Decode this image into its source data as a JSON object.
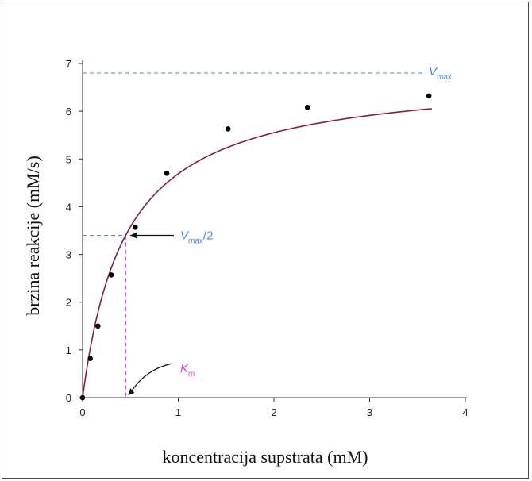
{
  "chart_data": {
    "type": "scatter",
    "xlabel": "koncentracija supstrata (mM)",
    "ylabel": "brzina reakcije (mM/s)",
    "xlim": [
      0,
      4
    ],
    "ylim": [
      0,
      7
    ],
    "x_ticks": [
      "0",
      "1",
      "2",
      "3",
      "4"
    ],
    "y_ticks": [
      "0",
      "1",
      "2",
      "3",
      "4",
      "5",
      "6",
      "7"
    ],
    "grid": false,
    "points": [
      {
        "x": 0.0,
        "y": 0.0
      },
      {
        "x": 0.08,
        "y": 0.82
      },
      {
        "x": 0.16,
        "y": 1.5
      },
      {
        "x": 0.3,
        "y": 2.57
      },
      {
        "x": 0.55,
        "y": 3.57
      },
      {
        "x": 0.88,
        "y": 4.7
      },
      {
        "x": 1.52,
        "y": 5.63
      },
      {
        "x": 2.35,
        "y": 6.08
      },
      {
        "x": 3.62,
        "y": 6.32
      }
    ],
    "fit": {
      "model": "Michaelis-Menten",
      "vmax": 6.8,
      "km": 0.45
    },
    "colors": {
      "curve": "#8b1a4a",
      "vmax_line": "#4a86e8",
      "km_line": "#e040e0",
      "points": "#000000"
    },
    "annotations": {
      "vmax_label": "V",
      "vmax_sub": "max",
      "half_label": "V",
      "half_sub": "max",
      "half_suffix": "/2",
      "km_label": "K",
      "km_sub": "m"
    }
  }
}
